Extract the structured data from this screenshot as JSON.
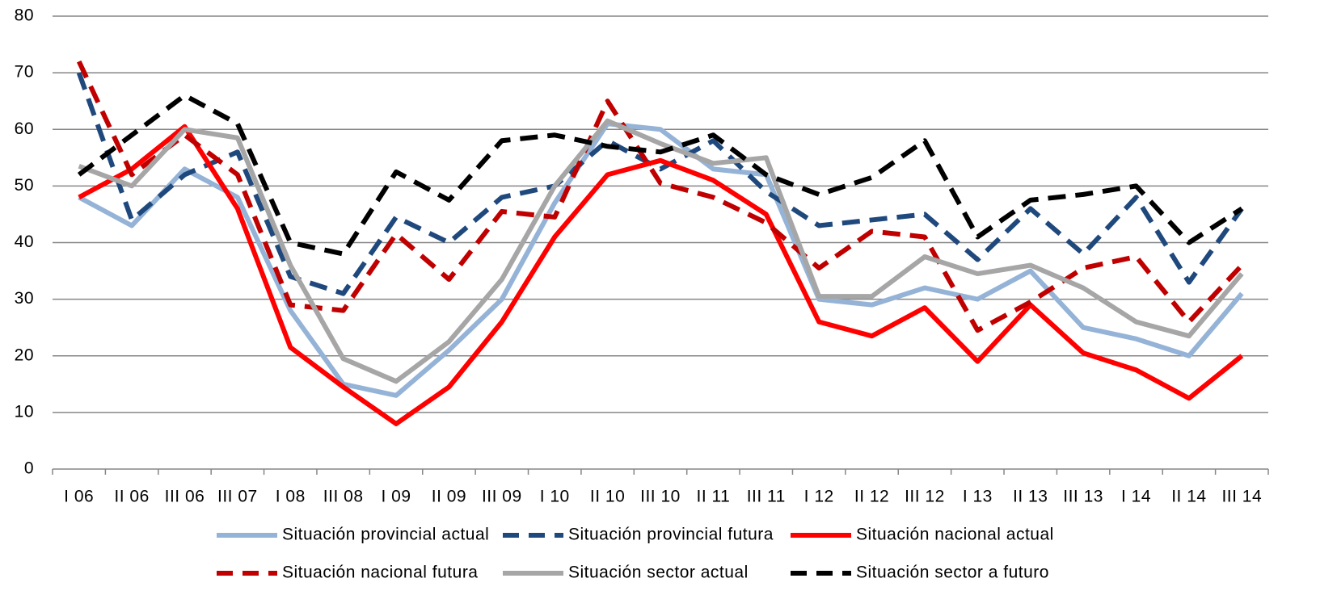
{
  "chart_data": {
    "type": "line",
    "categories": [
      "I 06",
      "II 06",
      "III 06",
      "III 07",
      "I 08",
      "III 08",
      "I 09",
      "II 09",
      "III 09",
      "I 10",
      "II 10",
      "III 10",
      "II 11",
      "III 11",
      "I 12",
      "II 12",
      "III 12",
      "I 13",
      "II 13",
      "III 13",
      "I 14",
      "II 14",
      "III 14"
    ],
    "series": [
      {
        "name": "Situación provincial actual",
        "color": "#95b3d7",
        "dashed": false,
        "values": [
          48,
          43,
          53,
          48,
          28,
          15,
          13,
          21,
          30,
          47,
          61,
          60,
          53,
          52,
          30,
          29,
          32,
          30,
          35,
          25,
          23,
          20,
          31
        ]
      },
      {
        "name": "Situación provincial futura",
        "color": "#1f497d",
        "dashed": true,
        "values": [
          70,
          44,
          52,
          56,
          34,
          31,
          44.5,
          40,
          48,
          50,
          58,
          53,
          58,
          49,
          43,
          44,
          45,
          37,
          46,
          38,
          48,
          33,
          46
        ]
      },
      {
        "name": "Situación nacional actual",
        "color": "#ff0000",
        "dashed": false,
        "values": [
          48,
          53,
          60.5,
          46,
          21.5,
          14.5,
          8,
          14.5,
          26,
          41,
          52,
          54.5,
          51,
          45,
          26,
          23.5,
          28.5,
          19,
          29,
          20.5,
          17.5,
          12.5,
          20
        ]
      },
      {
        "name": "Situación nacional futura",
        "color": "#c00000",
        "dashed": true,
        "values": [
          72,
          52,
          59,
          52,
          29,
          28,
          41.5,
          33.5,
          45.5,
          44.5,
          65,
          50.5,
          48,
          43.5,
          35.5,
          42,
          41,
          24.5,
          29.5,
          35.5,
          37.5,
          26,
          36
        ]
      },
      {
        "name": "Situación sector actual",
        "color": "#a6a6a6",
        "dashed": false,
        "values": [
          53.5,
          50,
          60,
          58.5,
          36,
          19.5,
          15.5,
          22.5,
          33.5,
          50,
          61.5,
          57.5,
          54,
          55,
          30.5,
          30.5,
          37.5,
          34.5,
          36,
          32,
          26,
          23.5,
          34.5
        ]
      },
      {
        "name": "Situación sector a futuro",
        "color": "#000000",
        "dashed": true,
        "values": [
          52,
          59,
          66,
          61,
          40,
          38,
          52.5,
          47.5,
          58,
          59,
          57,
          56,
          59,
          52,
          48.5,
          51.5,
          58,
          41,
          47.5,
          48.5,
          50,
          40,
          46
        ]
      }
    ],
    "ylim": [
      0,
      80
    ],
    "yticks": [
      0,
      10,
      20,
      30,
      40,
      50,
      60,
      70,
      80
    ],
    "grid": true
  }
}
